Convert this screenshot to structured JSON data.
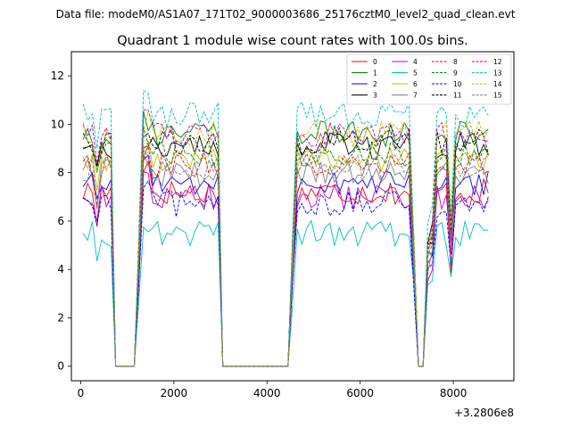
{
  "suptitle": "Data file: modeM0/AS1A07_171T02_9000003686_25176cztM0_level2_quad_clean.evt",
  "chart_data": {
    "type": "line",
    "title": "Quadrant 1 module wise count rates with 100.0s bins.",
    "xlabel": "",
    "ylabel": "",
    "x_offset_label": "+3.2806e8",
    "xlim": [
      -200,
      9300
    ],
    "ylim": [
      -0.6,
      13.0
    ],
    "x_ticks": [
      0,
      2000,
      4000,
      6000,
      8000
    ],
    "x_tick_labels": [
      "0",
      "2000",
      "4000",
      "6000",
      "8000"
    ],
    "y_ticks": [
      0,
      2,
      4,
      6,
      8,
      10,
      12
    ],
    "y_tick_labels": [
      "0",
      "2",
      "4",
      "6",
      "8",
      "10",
      "12"
    ],
    "legend_position": "top-right",
    "x": [
      50,
      150,
      250,
      350,
      450,
      550,
      650,
      750,
      850,
      950,
      1050,
      1150,
      1250,
      1350,
      1450,
      1550,
      1650,
      1750,
      1850,
      1950,
      2050,
      2150,
      2250,
      2350,
      2450,
      2550,
      2650,
      2750,
      2850,
      2950,
      3050,
      3150,
      3250,
      3350,
      3450,
      3550,
      3650,
      3750,
      3850,
      3950,
      4050,
      4150,
      4250,
      4350,
      4450,
      4550,
      4650,
      4750,
      4850,
      4950,
      5050,
      5150,
      5250,
      5350,
      5450,
      5550,
      5650,
      5750,
      5850,
      5950,
      6050,
      6150,
      6250,
      6350,
      6450,
      6550,
      6650,
      6750,
      6850,
      6950,
      7050,
      7150,
      7250,
      7350,
      7450,
      7550,
      7650,
      7750,
      7850,
      7950,
      8050,
      8150,
      8250,
      8350,
      8450,
      8550,
      8650,
      8750
    ],
    "series": [
      {
        "name": "0",
        "color": "#ff0000",
        "dash": "solid",
        "base": 7.2,
        "bump": 1.2
      },
      {
        "name": "1",
        "color": "#008000",
        "dash": "solid",
        "base": 9.6,
        "bump": 0.6
      },
      {
        "name": "2",
        "color": "#0000ff",
        "dash": "solid",
        "base": 7.6,
        "bump": 1.0
      },
      {
        "name": "3",
        "color": "#000000",
        "dash": "solid",
        "base": 9.1,
        "bump": 0.4
      },
      {
        "name": "4",
        "color": "#bf00bf",
        "dash": "solid",
        "base": 7.0,
        "bump": 0.8
      },
      {
        "name": "5",
        "color": "#00bfbf",
        "dash": "solid",
        "base": 5.5,
        "bump": 0.4
      },
      {
        "name": "6",
        "color": "#bfbf00",
        "dash": "solid",
        "base": 8.6,
        "bump": 0.5
      },
      {
        "name": "7",
        "color": "#808080",
        "dash": "solid",
        "base": 8.0,
        "bump": 0.6
      },
      {
        "name": "8",
        "color": "#ff0000",
        "dash": "dashed",
        "base": 8.3,
        "bump": 0.5
      },
      {
        "name": "9",
        "color": "#008000",
        "dash": "dashed",
        "base": 8.8,
        "bump": 0.6
      },
      {
        "name": "10",
        "color": "#0000ff",
        "dash": "dashed",
        "base": 6.7,
        "bump": 0.6
      },
      {
        "name": "11",
        "color": "#000000",
        "dash": "dashed",
        "base": 9.3,
        "bump": 0.5
      },
      {
        "name": "12",
        "color": "#bf00bf",
        "dash": "dashed",
        "base": 9.6,
        "bump": 0.6
      },
      {
        "name": "13",
        "color": "#00bfbf",
        "dash": "dashed",
        "base": 10.4,
        "bump": 1.0
      },
      {
        "name": "14",
        "color": "#bfbf00",
        "dash": "dashed",
        "base": 9.6,
        "bump": 0.5
      },
      {
        "name": "15",
        "color": "#808080",
        "dash": "dashed",
        "base": 8.2,
        "bump": 0.5
      }
    ]
  }
}
